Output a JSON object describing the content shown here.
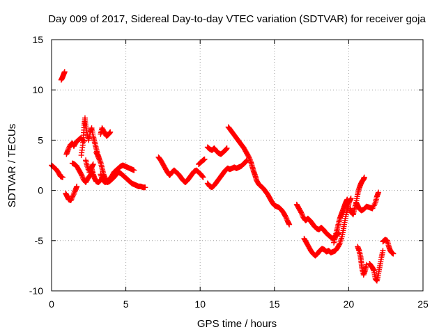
{
  "chart_data": {
    "type": "scatter",
    "title": "Day 009 of 2017, Sidereal Day-to-day VTEC variation (SDTVAR) for receiver goja",
    "xlabel": "GPS time / hours",
    "ylabel": "SDTVAR / TECUs",
    "xlim": [
      0,
      25
    ],
    "ylim": [
      -10,
      15
    ],
    "x_ticks": [
      0,
      5,
      10,
      15,
      20,
      25
    ],
    "y_ticks": [
      -10,
      -5,
      0,
      5,
      10,
      15
    ],
    "grid": true,
    "grid_style": "dotted",
    "marker": "plus",
    "color": "#ff0000",
    "series": [
      {
        "points": [
          [
            0.0,
            2.5
          ],
          [
            0.15,
            2.3
          ],
          [
            0.3,
            2.1
          ],
          [
            0.45,
            1.8
          ],
          [
            0.6,
            1.4
          ],
          [
            0.75,
            1.3
          ]
        ]
      },
      {
        "points": [
          [
            0.65,
            11.0
          ],
          [
            0.72,
            11.2
          ],
          [
            0.8,
            11.5
          ],
          [
            0.88,
            11.8
          ]
        ]
      },
      {
        "points": [
          [
            0.95,
            -0.3
          ],
          [
            1.05,
            -0.6
          ],
          [
            1.15,
            -0.9
          ],
          [
            1.3,
            -1.0
          ],
          [
            1.45,
            -0.5
          ],
          [
            1.6,
            0.0
          ],
          [
            1.7,
            0.4
          ]
        ]
      },
      {
        "points": [
          [
            1.0,
            3.6
          ],
          [
            1.1,
            4.0
          ],
          [
            1.25,
            4.5
          ],
          [
            1.4,
            4.7
          ],
          [
            1.5,
            4.4
          ],
          [
            1.65,
            4.8
          ],
          [
            1.8,
            5.0
          ],
          [
            1.95,
            5.2
          ],
          [
            2.1,
            5.0
          ],
          [
            2.2,
            4.9
          ]
        ]
      },
      {
        "points": [
          [
            1.4,
            2.7
          ],
          [
            1.55,
            2.6
          ],
          [
            1.7,
            2.4
          ],
          [
            1.85,
            2.0
          ],
          [
            2.0,
            1.6
          ],
          [
            2.15,
            1.1
          ],
          [
            2.3,
            0.8
          ],
          [
            2.45,
            1.2
          ],
          [
            2.6,
            1.5
          ],
          [
            2.75,
            1.8
          ]
        ]
      },
      {
        "points": [
          [
            2.0,
            3.5
          ],
          [
            2.1,
            4.5
          ],
          [
            2.15,
            5.5
          ],
          [
            2.2,
            6.5
          ],
          [
            2.25,
            7.2
          ],
          [
            2.3,
            6.4
          ],
          [
            2.4,
            5.6
          ],
          [
            2.5,
            5.0
          ],
          [
            2.6,
            5.8
          ],
          [
            2.7,
            6.2
          ],
          [
            2.8,
            5.4
          ],
          [
            2.9,
            4.8
          ],
          [
            3.0,
            4.2
          ],
          [
            3.1,
            3.6
          ],
          [
            3.2,
            3.2
          ]
        ]
      },
      {
        "points": [
          [
            2.3,
            3.0
          ],
          [
            2.4,
            2.4
          ],
          [
            2.55,
            1.8
          ],
          [
            2.7,
            2.3
          ],
          [
            2.8,
            2.6
          ]
        ]
      },
      {
        "points": [
          [
            2.7,
            2.2
          ],
          [
            2.8,
            1.6
          ],
          [
            2.9,
            1.2
          ],
          [
            3.0,
            0.9
          ],
          [
            3.15,
            0.8
          ],
          [
            3.3,
            1.0
          ],
          [
            3.45,
            1.3
          ],
          [
            3.6,
            1.0
          ],
          [
            3.75,
            0.8
          ],
          [
            3.9,
            0.9
          ],
          [
            4.05,
            1.1
          ],
          [
            4.2,
            1.3
          ],
          [
            4.35,
            1.6
          ],
          [
            4.5,
            1.8
          ],
          [
            4.65,
            1.7
          ],
          [
            4.8,
            1.5
          ],
          [
            4.95,
            1.3
          ],
          [
            5.1,
            1.1
          ],
          [
            5.25,
            0.9
          ],
          [
            5.4,
            0.7
          ],
          [
            5.55,
            0.6
          ],
          [
            5.7,
            0.5
          ],
          [
            5.85,
            0.4
          ],
          [
            6.0,
            0.4
          ],
          [
            6.15,
            0.3
          ],
          [
            6.3,
            0.3
          ]
        ]
      },
      {
        "points": [
          [
            3.0,
            3.8
          ],
          [
            3.15,
            3.3
          ],
          [
            3.3,
            2.8
          ],
          [
            3.4,
            2.2
          ],
          [
            3.5,
            1.6
          ],
          [
            3.6,
            1.2
          ]
        ]
      },
      {
        "points": [
          [
            3.3,
            5.6
          ],
          [
            3.4,
            6.2
          ],
          [
            3.55,
            5.8
          ],
          [
            3.7,
            5.4
          ],
          [
            3.85,
            5.6
          ],
          [
            3.95,
            5.8
          ]
        ]
      },
      {
        "points": [
          [
            3.3,
            1.6
          ],
          [
            3.45,
            1.0
          ],
          [
            3.6,
            0.8
          ],
          [
            3.75,
            0.9
          ],
          [
            3.9,
            1.1
          ],
          [
            4.05,
            1.4
          ],
          [
            4.2,
            1.8
          ],
          [
            4.35,
            2.0
          ],
          [
            4.5,
            2.2
          ],
          [
            4.65,
            2.4
          ],
          [
            4.8,
            2.5
          ],
          [
            4.95,
            2.4
          ],
          [
            5.1,
            2.3
          ],
          [
            5.25,
            2.2
          ],
          [
            5.4,
            2.1
          ],
          [
            5.55,
            2.0
          ]
        ]
      },
      {
        "points": [
          [
            7.2,
            3.3
          ],
          [
            7.35,
            3.0
          ],
          [
            7.5,
            2.6
          ],
          [
            7.65,
            2.2
          ],
          [
            7.8,
            1.8
          ],
          [
            7.95,
            1.5
          ],
          [
            8.1,
            1.8
          ],
          [
            8.25,
            2.0
          ],
          [
            8.4,
            1.8
          ],
          [
            8.55,
            1.6
          ],
          [
            8.7,
            1.3
          ],
          [
            8.85,
            1.0
          ],
          [
            9.0,
            0.8
          ],
          [
            9.15,
            1.0
          ],
          [
            9.3,
            1.3
          ],
          [
            9.45,
            1.6
          ],
          [
            9.6,
            1.9
          ],
          [
            9.75,
            2.0
          ],
          [
            9.9,
            1.8
          ],
          [
            10.05,
            1.6
          ],
          [
            10.2,
            1.3
          ]
        ]
      },
      {
        "points": [
          [
            9.9,
            2.6
          ],
          [
            10.05,
            2.8
          ],
          [
            10.2,
            3.0
          ],
          [
            10.3,
            3.1
          ]
        ]
      },
      {
        "points": [
          [
            10.5,
            4.3
          ],
          [
            10.65,
            4.1
          ],
          [
            10.8,
            4.0
          ],
          [
            10.95,
            4.2
          ],
          [
            11.1,
            3.9
          ],
          [
            11.25,
            3.7
          ],
          [
            11.4,
            3.6
          ],
          [
            11.55,
            3.8
          ],
          [
            11.7,
            4.0
          ],
          [
            11.8,
            4.2
          ]
        ]
      },
      {
        "points": [
          [
            10.5,
            0.7
          ],
          [
            10.65,
            0.4
          ],
          [
            10.8,
            0.3
          ],
          [
            10.95,
            0.5
          ],
          [
            11.1,
            0.8
          ],
          [
            11.25,
            1.1
          ],
          [
            11.4,
            1.4
          ],
          [
            11.55,
            1.7
          ],
          [
            11.7,
            2.0
          ],
          [
            11.85,
            2.2
          ],
          [
            12.0,
            2.1
          ],
          [
            12.15,
            2.2
          ],
          [
            12.3,
            2.3
          ],
          [
            12.45,
            2.2
          ],
          [
            12.6,
            2.3
          ],
          [
            12.75,
            2.4
          ],
          [
            12.9,
            2.6
          ],
          [
            13.05,
            2.8
          ],
          [
            13.15,
            3.0
          ]
        ]
      },
      {
        "points": [
          [
            11.9,
            6.3
          ],
          [
            12.05,
            6.0
          ],
          [
            12.2,
            5.7
          ],
          [
            12.35,
            5.4
          ],
          [
            12.5,
            5.1
          ],
          [
            12.65,
            4.8
          ],
          [
            12.8,
            4.5
          ],
          [
            12.95,
            4.2
          ],
          [
            13.1,
            3.8
          ],
          [
            13.25,
            3.4
          ],
          [
            13.4,
            2.9
          ],
          [
            13.5,
            2.4
          ],
          [
            13.6,
            1.9
          ],
          [
            13.7,
            1.5
          ],
          [
            13.8,
            1.0
          ],
          [
            13.95,
            0.6
          ],
          [
            14.1,
            0.4
          ],
          [
            14.25,
            0.2
          ],
          [
            14.4,
            -0.1
          ],
          [
            14.55,
            -0.4
          ],
          [
            14.7,
            -0.8
          ],
          [
            14.85,
            -1.2
          ],
          [
            15.0,
            -1.5
          ],
          [
            15.15,
            -1.6
          ],
          [
            15.3,
            -1.7
          ],
          [
            15.45,
            -1.9
          ],
          [
            15.6,
            -2.2
          ],
          [
            15.75,
            -2.6
          ],
          [
            15.9,
            -3.1
          ],
          [
            16.0,
            -3.4
          ]
        ]
      },
      {
        "points": [
          [
            16.5,
            -1.4
          ],
          [
            16.65,
            -1.8
          ],
          [
            16.8,
            -2.2
          ],
          [
            16.95,
            -2.7
          ],
          [
            17.1,
            -3.0
          ],
          [
            17.25,
            -2.8
          ],
          [
            17.4,
            -3.0
          ],
          [
            17.55,
            -3.3
          ],
          [
            17.7,
            -3.6
          ],
          [
            17.85,
            -3.8
          ],
          [
            18.0,
            -3.9
          ],
          [
            18.15,
            -3.7
          ],
          [
            18.3,
            -3.9
          ],
          [
            18.45,
            -4.2
          ],
          [
            18.6,
            -4.4
          ],
          [
            18.75,
            -4.6
          ],
          [
            18.9,
            -4.8
          ],
          [
            19.05,
            -4.6
          ],
          [
            19.2,
            -4.5
          ],
          [
            19.35,
            -4.2
          ]
        ]
      },
      {
        "points": [
          [
            17.0,
            -4.8
          ],
          [
            17.15,
            -5.2
          ],
          [
            17.3,
            -5.6
          ],
          [
            17.45,
            -6.0
          ],
          [
            17.6,
            -6.3
          ],
          [
            17.75,
            -6.5
          ],
          [
            17.9,
            -6.3
          ],
          [
            18.05,
            -6.0
          ],
          [
            18.2,
            -5.8
          ],
          [
            18.35,
            -5.9
          ],
          [
            18.5,
            -6.1
          ],
          [
            18.65,
            -6.0
          ],
          [
            18.8,
            -6.2
          ],
          [
            18.95,
            -6.1
          ],
          [
            19.1,
            -6.0
          ],
          [
            19.25,
            -5.7
          ],
          [
            19.4,
            -5.3
          ],
          [
            19.55,
            -4.6
          ],
          [
            19.65,
            -3.8
          ],
          [
            19.75,
            -3.0
          ],
          [
            19.85,
            -2.2
          ],
          [
            19.95,
            -1.6
          ],
          [
            20.05,
            -1.1
          ],
          [
            20.15,
            -0.8
          ]
        ]
      },
      {
        "points": [
          [
            19.0,
            -5.2
          ],
          [
            19.1,
            -4.6
          ],
          [
            19.2,
            -4.0
          ],
          [
            19.3,
            -3.4
          ],
          [
            19.4,
            -2.8
          ],
          [
            19.5,
            -2.4
          ],
          [
            19.6,
            -2.0
          ],
          [
            19.7,
            -1.6
          ],
          [
            19.8,
            -1.2
          ],
          [
            19.9,
            -0.9
          ]
        ]
      },
      {
        "points": [
          [
            20.1,
            -1.8
          ],
          [
            20.2,
            -2.2
          ],
          [
            20.3,
            -2.4
          ],
          [
            20.4,
            -1.8
          ],
          [
            20.5,
            -1.2
          ],
          [
            20.6,
            -0.4
          ],
          [
            20.7,
            0.2
          ],
          [
            20.8,
            0.6
          ],
          [
            20.9,
            0.9
          ],
          [
            21.0,
            1.1
          ],
          [
            21.05,
            1.3
          ]
        ]
      },
      {
        "points": [
          [
            20.5,
            -1.2
          ],
          [
            20.6,
            -1.5
          ],
          [
            20.7,
            -1.8
          ],
          [
            20.85,
            -2.0
          ],
          [
            21.0,
            -1.9
          ],
          [
            21.2,
            -1.6
          ],
          [
            21.4,
            -1.7
          ],
          [
            21.6,
            -1.8
          ],
          [
            21.8,
            -1.2
          ],
          [
            21.9,
            -0.6
          ],
          [
            22.0,
            -0.2
          ]
        ]
      },
      {
        "points": [
          [
            20.6,
            -5.6
          ],
          [
            20.7,
            -6.0
          ],
          [
            20.8,
            -6.6
          ],
          [
            20.85,
            -7.2
          ],
          [
            20.9,
            -7.8
          ],
          [
            21.0,
            -8.4
          ],
          [
            21.1,
            -8.0
          ],
          [
            21.2,
            -7.4
          ]
        ]
      },
      {
        "points": [
          [
            21.4,
            -7.3
          ],
          [
            21.5,
            -7.5
          ],
          [
            21.6,
            -7.7
          ],
          [
            21.7,
            -8.0
          ],
          [
            21.8,
            -8.8
          ],
          [
            21.9,
            -9.0
          ],
          [
            22.0,
            -8.3
          ],
          [
            22.1,
            -7.5
          ],
          [
            22.2,
            -6.7
          ],
          [
            22.3,
            -6.0
          ]
        ]
      },
      {
        "points": [
          [
            22.3,
            -5.1
          ],
          [
            22.45,
            -4.9
          ],
          [
            22.6,
            -5.0
          ],
          [
            22.7,
            -5.6
          ],
          [
            22.8,
            -6.0
          ],
          [
            22.9,
            -6.2
          ],
          [
            23.0,
            -6.3
          ]
        ]
      }
    ]
  }
}
